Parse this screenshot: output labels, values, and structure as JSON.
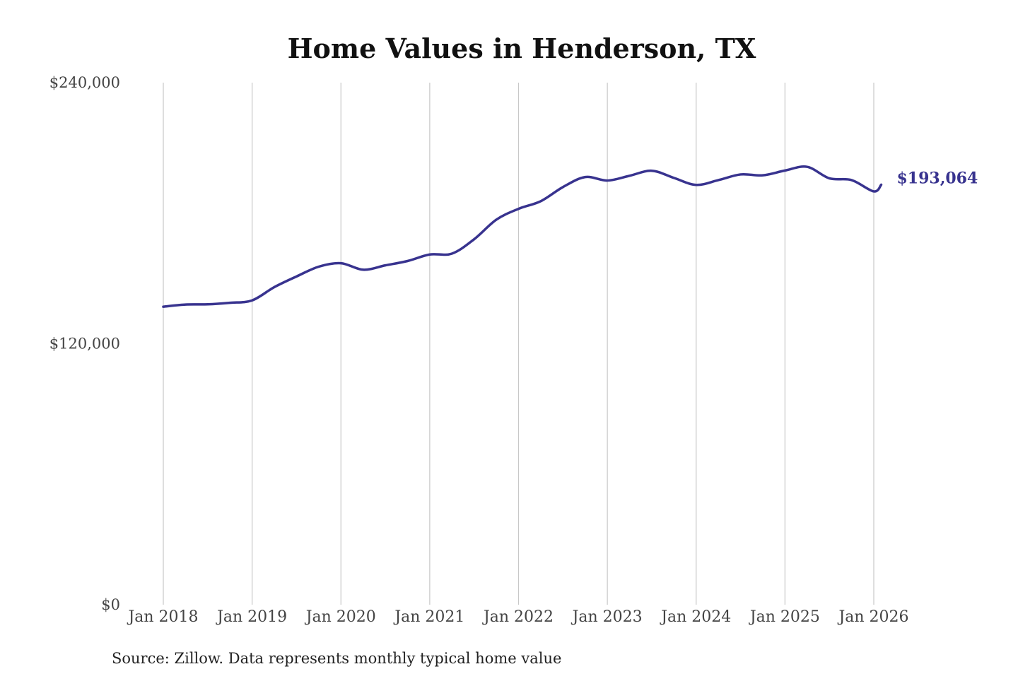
{
  "chart_data": {
    "type": "line",
    "title": "Home Values in Henderson, TX",
    "xlabel": "",
    "ylabel": "",
    "ylim": [
      0,
      240000
    ],
    "yticks": [
      {
        "value": 0,
        "label": "$0"
      },
      {
        "value": 120000,
        "label": "$120,000"
      },
      {
        "value": 240000,
        "label": "$240,000"
      }
    ],
    "xlim": [
      "2018-01",
      "2026-01"
    ],
    "xticks": [
      {
        "value": "2018-01",
        "label": "Jan 2018"
      },
      {
        "value": "2019-01",
        "label": "Jan 2019"
      },
      {
        "value": "2020-01",
        "label": "Jan 2020"
      },
      {
        "value": "2021-01",
        "label": "Jan 2021"
      },
      {
        "value": "2022-01",
        "label": "Jan 2022"
      },
      {
        "value": "2023-01",
        "label": "Jan 2023"
      },
      {
        "value": "2024-01",
        "label": "Jan 2024"
      },
      {
        "value": "2025-01",
        "label": "Jan 2025"
      },
      {
        "value": "2026-01",
        "label": "Jan 2026"
      }
    ],
    "grid": {
      "vertical": true,
      "horizontal": false
    },
    "legend": "none",
    "series": [
      {
        "color": "#38338f",
        "x": [
          "2018-01",
          "2018-04",
          "2018-07",
          "2018-10",
          "2019-01",
          "2019-04",
          "2019-07",
          "2019-10",
          "2020-01",
          "2020-04",
          "2020-07",
          "2020-10",
          "2021-01",
          "2021-04",
          "2021-07",
          "2021-10",
          "2022-01",
          "2022-04",
          "2022-07",
          "2022-10",
          "2023-01",
          "2023-04",
          "2023-07",
          "2023-10",
          "2024-01",
          "2024-04",
          "2024-07",
          "2024-10",
          "2025-01",
          "2025-04",
          "2025-07",
          "2025-10",
          "2026-01",
          "2026-02"
        ],
        "y": [
          137000,
          138000,
          138100,
          138800,
          139900,
          146000,
          150900,
          155400,
          157000,
          154000,
          156000,
          158000,
          161000,
          161400,
          168000,
          177000,
          182000,
          185500,
          192000,
          196600,
          195000,
          197200,
          199500,
          196200,
          193000,
          195200,
          197800,
          197400,
          199600,
          201300,
          196000,
          195200,
          190000,
          193064
        ],
        "end_label": "$193,064"
      }
    ],
    "source": "Source: Zillow. Data represents monthly typical home value"
  }
}
